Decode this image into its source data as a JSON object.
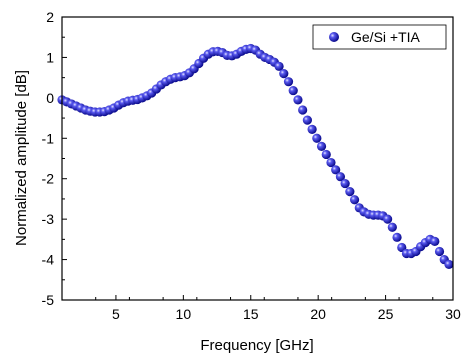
{
  "chart_data": {
    "type": "scatter",
    "xlabel": "Frequency [GHz]",
    "ylabel": "Normalized amplitude [dB]",
    "xlim": [
      1,
      30
    ],
    "ylim": [
      -5,
      2
    ],
    "xticks": [
      5,
      10,
      15,
      20,
      25,
      30
    ],
    "yticks": [
      -5,
      -4,
      -3,
      -2,
      -1,
      0,
      1,
      2
    ],
    "grid": false,
    "legend_position": "top-right",
    "series": [
      {
        "name": "Ge/Si +TIA",
        "color": "#1a1acc",
        "marker": "sphere",
        "x": [
          1.0,
          1.35,
          1.7,
          2.05,
          2.4,
          2.75,
          3.1,
          3.45,
          3.8,
          4.15,
          4.5,
          4.85,
          5.2,
          5.55,
          5.9,
          6.25,
          6.6,
          6.95,
          7.3,
          7.65,
          8.0,
          8.35,
          8.7,
          9.05,
          9.4,
          9.75,
          10.1,
          10.45,
          10.8,
          11.15,
          11.5,
          11.85,
          12.2,
          12.55,
          12.9,
          13.25,
          13.6,
          13.95,
          14.3,
          14.65,
          15.0,
          15.35,
          15.7,
          16.05,
          16.4,
          16.75,
          17.1,
          17.45,
          17.8,
          18.15,
          18.5,
          18.85,
          19.2,
          19.55,
          19.9,
          20.25,
          20.6,
          20.95,
          21.3,
          21.65,
          22.0,
          22.35,
          22.7,
          23.05,
          23.4,
          23.75,
          24.1,
          24.45,
          24.8,
          25.15,
          25.5,
          25.85,
          26.2,
          26.55,
          26.9,
          27.25,
          27.6,
          27.95,
          28.3,
          28.65,
          29.0,
          29.35,
          29.7
        ],
        "y": [
          -0.05,
          -0.1,
          -0.15,
          -0.2,
          -0.25,
          -0.3,
          -0.33,
          -0.35,
          -0.35,
          -0.34,
          -0.3,
          -0.25,
          -0.18,
          -0.12,
          -0.08,
          -0.06,
          -0.04,
          0.0,
          0.05,
          0.12,
          0.22,
          0.32,
          0.4,
          0.46,
          0.5,
          0.52,
          0.55,
          0.62,
          0.72,
          0.85,
          0.98,
          1.08,
          1.14,
          1.15,
          1.12,
          1.05,
          1.04,
          1.08,
          1.15,
          1.2,
          1.22,
          1.18,
          1.08,
          1.0,
          0.95,
          0.88,
          0.78,
          0.6,
          0.4,
          0.18,
          -0.05,
          -0.3,
          -0.55,
          -0.78,
          -1.0,
          -1.2,
          -1.4,
          -1.6,
          -1.78,
          -1.95,
          -2.12,
          -2.32,
          -2.52,
          -2.72,
          -2.82,
          -2.88,
          -2.9,
          -2.9,
          -2.92,
          -3.0,
          -3.2,
          -3.45,
          -3.7,
          -3.85,
          -3.85,
          -3.8,
          -3.68,
          -3.58,
          -3.5,
          -3.55,
          -3.8,
          -4.0,
          -4.12
        ]
      }
    ]
  }
}
